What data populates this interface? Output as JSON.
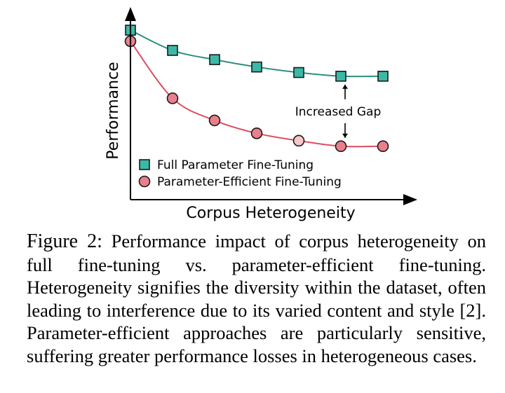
{
  "chart_data": {
    "type": "line",
    "title": "",
    "xlabel": "Corpus Heterogeneity",
    "ylabel": "Performance",
    "x": [
      0,
      1,
      2,
      3,
      4,
      5,
      6
    ],
    "ylim": [
      0,
      1
    ],
    "grid": false,
    "legend_position": "bottom-left",
    "series": [
      {
        "name": "Full Parameter Fine-Tuning",
        "marker": "square",
        "color": "#3cb9a6",
        "line_color": "#2e8f7e",
        "x": [
          0,
          1,
          2,
          3,
          4,
          5,
          6
        ],
        "y": [
          0.92,
          0.81,
          0.76,
          0.72,
          0.69,
          0.67,
          0.67
        ],
        "highlight_index": -1
      },
      {
        "name": "Parameter-Efficient Fine-Tuning",
        "marker": "circle",
        "color": "#ea7f8b",
        "line_color": "#dc4e60",
        "x": [
          0,
          1,
          2,
          3,
          4,
          5,
          6
        ],
        "y": [
          0.86,
          0.55,
          0.43,
          0.36,
          0.32,
          0.29,
          0.29
        ],
        "highlight_index": 4,
        "highlight_color": "#f6c6cc"
      }
    ],
    "annotations": [
      {
        "text": "Increased Gap",
        "between_series_at_x": 5,
        "arrows": "up-down"
      }
    ]
  },
  "caption": {
    "label": "Figure 2:",
    "text": "Performance impact of corpus heterogeneity on full fine-tuning vs.  parameter-efficient fine-tuning. Heterogeneity signifies the diversity within the dataset, often leading to interference due to its varied content and style [2]. Parameter-efficient approaches are particularly sensitive, suffering greater performance losses in heterogeneous cases."
  }
}
